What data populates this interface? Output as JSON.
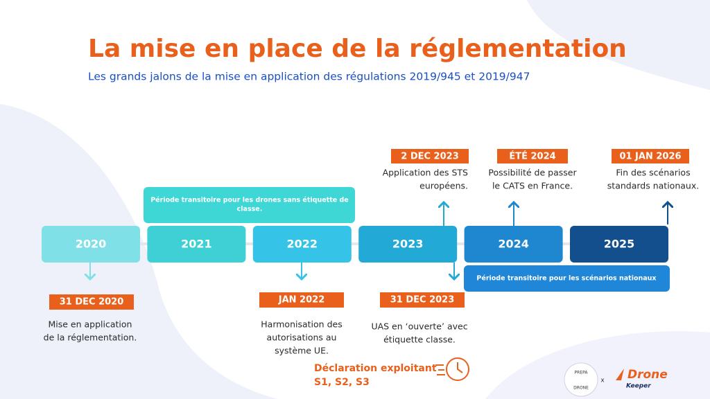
{
  "header": {
    "title": "La mise en place de la réglementation",
    "subtitle": "Les grands jalons de la mise en application des régulations 2019/945 et 2019/947"
  },
  "years": [
    "2020",
    "2021",
    "2022",
    "2023",
    "2024",
    "2025"
  ],
  "periods": [
    {
      "lines": [
        "Période transitoire pour les drones sans étiquette de",
        "classe."
      ]
    },
    {
      "lines": [
        "Période transitoire pour les scénarios nationaux"
      ]
    }
  ],
  "milestones_above": [
    {
      "date": "2 DEC 2023",
      "lines": [
        "Application des STS",
        "européens."
      ]
    },
    {
      "date": "ÉTÉ 2024",
      "lines": [
        "Possibilité de passer",
        "le CATS en France."
      ]
    },
    {
      "date": "01 JAN 2026",
      "lines": [
        "Fin des scénarios",
        "standards nationaux."
      ]
    }
  ],
  "milestones_below": [
    {
      "date": "31 DEC 2020",
      "lines": [
        "Mise en application",
        "de la réglementation."
      ]
    },
    {
      "date": "JAN 2022",
      "lines": [
        "Harmonisation des",
        "autorisations au",
        "système UE."
      ]
    },
    {
      "date": "31 DEC 2023",
      "lines": [
        "UAS en ‘ouverte’ avec",
        "étiquette classe."
      ]
    }
  ],
  "declaration": {
    "lines": [
      "Déclaration exploitant",
      "S1, S2, S3"
    ]
  },
  "logos": {
    "prepa_top": "PREPA",
    "prepa_bottom": "DRONE",
    "separator": "x",
    "drone": "Drone",
    "keeper": "Keeper"
  }
}
